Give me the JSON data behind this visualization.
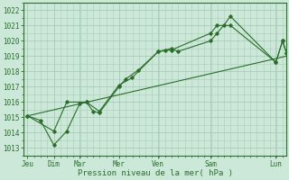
{
  "title": "",
  "xlabel": "Pression niveau de la mer( hPa )",
  "ylabel": "",
  "bg_color": "#cce8d8",
  "grid_color": "#aaccb8",
  "line_color": "#2a6e2a",
  "ylim": [
    1012.5,
    1022.5
  ],
  "yticks": [
    1013,
    1014,
    1015,
    1016,
    1017,
    1018,
    1019,
    1020,
    1021,
    1022
  ],
  "xlim": [
    -0.1,
    6.6
  ],
  "day_positions": [
    0,
    0.67,
    1.33,
    2.33,
    3.33,
    4.67,
    6.33
  ],
  "day_labels": [
    "Jeu",
    "Dim",
    "Mar",
    "Mer",
    "Ven",
    "Sam",
    "Lun"
  ],
  "series1": [
    [
      0.0,
      1015.1
    ],
    [
      0.33,
      1014.8
    ],
    [
      0.67,
      1013.2
    ],
    [
      1.0,
      1014.1
    ],
    [
      1.33,
      1015.9
    ],
    [
      1.5,
      1016.0
    ],
    [
      1.67,
      1015.4
    ],
    [
      1.83,
      1015.3
    ],
    [
      2.33,
      1017.0
    ],
    [
      2.5,
      1017.5
    ],
    [
      2.83,
      1018.1
    ],
    [
      3.33,
      1019.3
    ],
    [
      3.5,
      1019.4
    ],
    [
      3.67,
      1019.5
    ],
    [
      3.83,
      1019.3
    ],
    [
      4.67,
      1020.0
    ],
    [
      4.83,
      1020.5
    ],
    [
      5.0,
      1021.0
    ],
    [
      5.17,
      1021.6
    ],
    [
      6.33,
      1018.6
    ],
    [
      6.5,
      1020.0
    ],
    [
      6.6,
      1019.2
    ]
  ],
  "series2": [
    [
      0.0,
      1015.1
    ],
    [
      0.67,
      1014.1
    ],
    [
      1.0,
      1016.0
    ],
    [
      1.5,
      1016.0
    ],
    [
      1.83,
      1015.4
    ],
    [
      2.33,
      1017.1
    ],
    [
      2.67,
      1017.6
    ],
    [
      3.33,
      1019.3
    ],
    [
      3.67,
      1019.4
    ],
    [
      4.67,
      1020.5
    ],
    [
      4.83,
      1021.0
    ],
    [
      5.17,
      1021.0
    ],
    [
      6.33,
      1018.6
    ],
    [
      6.5,
      1020.0
    ],
    [
      6.6,
      1019.2
    ]
  ],
  "trend_line": [
    [
      0.0,
      1015.1
    ],
    [
      6.6,
      1019.0
    ]
  ]
}
